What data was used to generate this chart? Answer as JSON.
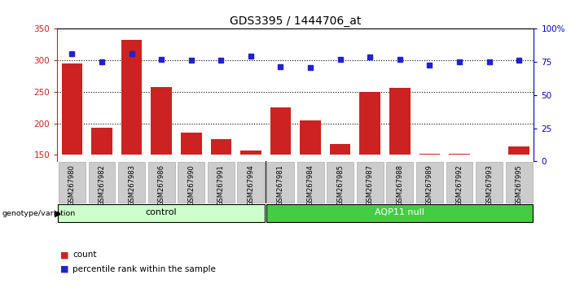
{
  "title": "GDS3395 / 1444706_at",
  "samples": [
    "GSM267980",
    "GSM267982",
    "GSM267983",
    "GSM267986",
    "GSM267990",
    "GSM267991",
    "GSM267994",
    "GSM267981",
    "GSM267984",
    "GSM267985",
    "GSM267987",
    "GSM267988",
    "GSM267989",
    "GSM267992",
    "GSM267993",
    "GSM267995"
  ],
  "counts": [
    295,
    193,
    333,
    258,
    185,
    175,
    157,
    226,
    205,
    167,
    250,
    257,
    152,
    152,
    148,
    163
  ],
  "percentile_dot_y": [
    311,
    297,
    311,
    301,
    300,
    300,
    307,
    290,
    289,
    301,
    306,
    301,
    293,
    297,
    297,
    300
  ],
  "n_control": 7,
  "n_aqp11": 9,
  "bar_color": "#cc2222",
  "dot_color": "#2222cc",
  "control_bg": "#ccffcc",
  "aqp11_bg": "#44cc44",
  "ylim_left": [
    140,
    350
  ],
  "ylim_right": [
    0,
    100
  ],
  "yticks_left": [
    150,
    200,
    250,
    300,
    350
  ],
  "yticks_right": [
    0,
    25,
    50,
    75,
    100
  ],
  "gridlines": [
    200,
    250,
    300
  ],
  "background_color": "#ffffff",
  "label_bg": "#cccccc",
  "label_edge": "#aaaaaa"
}
